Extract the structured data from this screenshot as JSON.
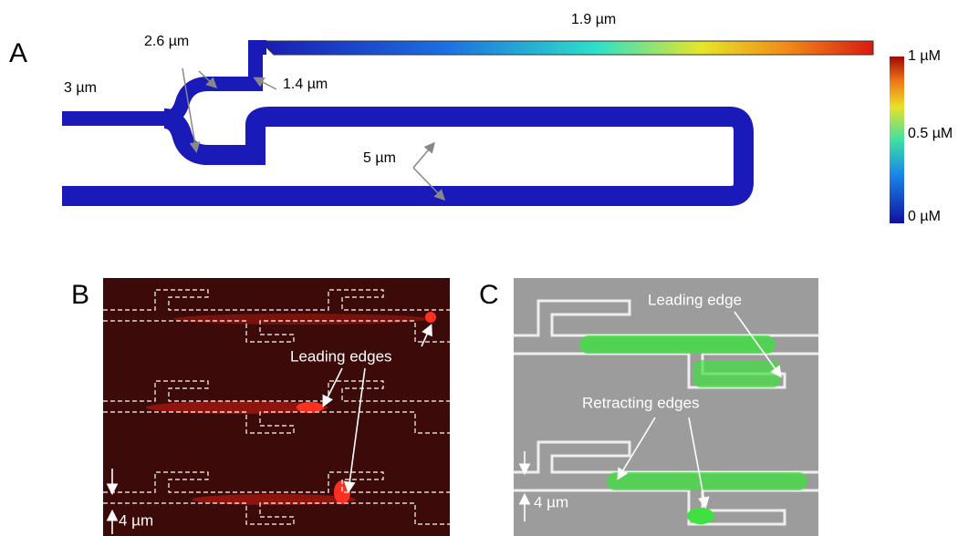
{
  "panels": {
    "a": {
      "label": "A",
      "top_channel": "1.9 µm",
      "upper_branch": "2.6 µm",
      "inlet": "3 µm",
      "connector": "1.4 µm",
      "lower_branch": "5 µm",
      "colorbar": {
        "max": "1 µM",
        "mid": "0.5 µM",
        "min": "0 µM"
      }
    },
    "b": {
      "label": "B",
      "annotation": "Leading edges",
      "scale": "4 µm"
    },
    "c": {
      "label": "C",
      "annotation_top": "Leading edge",
      "annotation_bottom": "Retracting  edges",
      "scale": "4 µm"
    }
  }
}
